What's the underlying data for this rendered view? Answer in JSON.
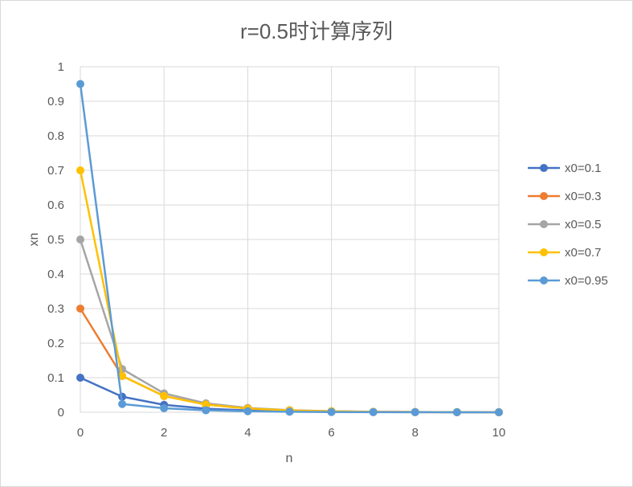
{
  "chart_data": {
    "type": "line",
    "title": "r=0.5时计算序列",
    "xlabel": "n",
    "ylabel": "xn",
    "xlim": [
      0,
      10
    ],
    "ylim": [
      0,
      1
    ],
    "x_ticks": [
      "0",
      "2",
      "4",
      "6",
      "8",
      "10"
    ],
    "y_ticks": [
      "0",
      "0.1",
      "0.2",
      "0.3",
      "0.4",
      "0.5",
      "0.6",
      "0.7",
      "0.8",
      "0.9",
      "1"
    ],
    "grid": true,
    "legend_position": "right",
    "x": [
      0,
      1,
      2,
      3,
      4,
      5,
      6,
      7,
      8,
      9,
      10
    ],
    "series": [
      {
        "name": "x0=0.1",
        "color": "#4472C4",
        "values": [
          0.1,
          0.045,
          0.0215,
          0.0105,
          0.0052,
          0.0026,
          0.0013,
          0.0006,
          0.0003,
          0.0002,
          0.0001
        ]
      },
      {
        "name": "x0=0.3",
        "color": "#ED7D31",
        "values": [
          0.3,
          0.105,
          0.047,
          0.0224,
          0.0109,
          0.0054,
          0.0027,
          0.0013,
          0.0007,
          0.0003,
          0.0002
        ]
      },
      {
        "name": "x0=0.5",
        "color": "#A5A5A5",
        "values": [
          0.5,
          0.125,
          0.0547,
          0.0258,
          0.0126,
          0.0062,
          0.0031,
          0.0015,
          0.0008,
          0.0004,
          0.0002
        ]
      },
      {
        "name": "x0=0.7",
        "color": "#FFC000",
        "values": [
          0.7,
          0.105,
          0.047,
          0.0224,
          0.0109,
          0.0054,
          0.0027,
          0.0013,
          0.0007,
          0.0003,
          0.0002
        ]
      },
      {
        "name": "x0=0.95",
        "color": "#5B9BD5",
        "values": [
          0.95,
          0.0238,
          0.0116,
          0.0057,
          0.0029,
          0.0014,
          0.0007,
          0.0004,
          0.0002,
          0.0001,
          0.0
        ]
      }
    ]
  }
}
